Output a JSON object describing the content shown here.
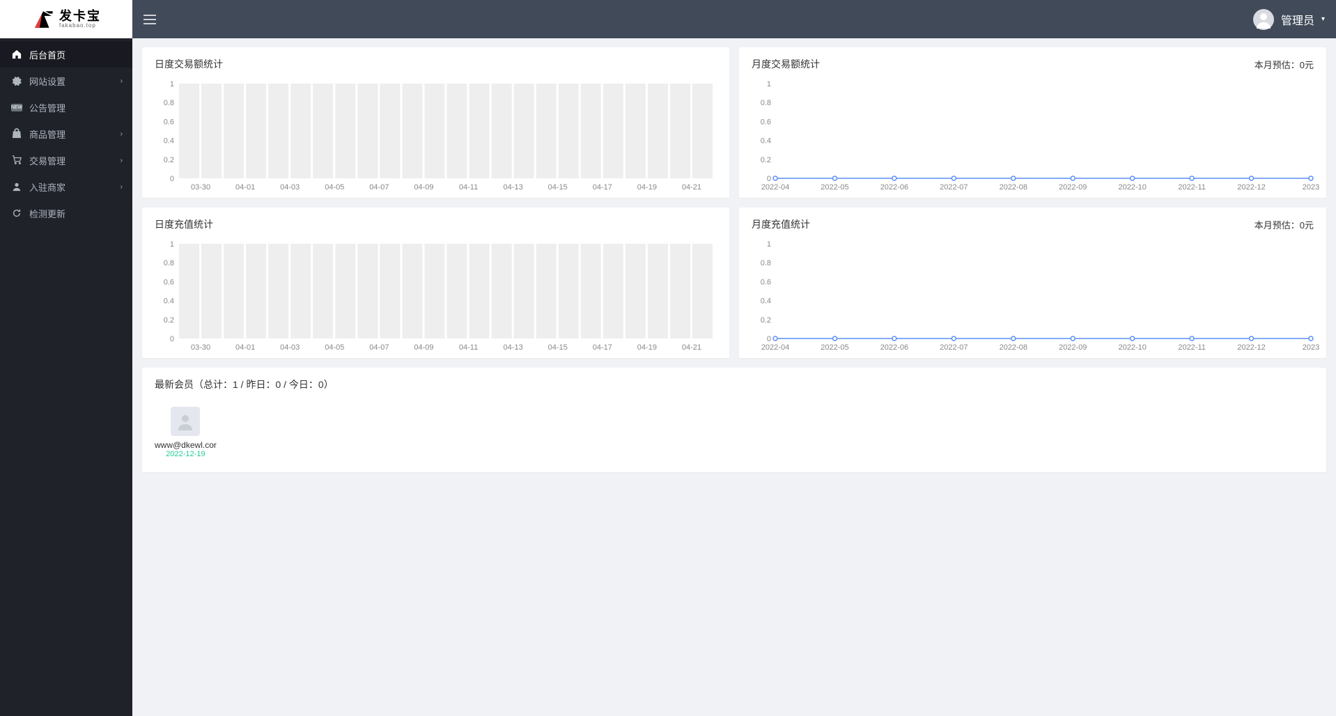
{
  "brand": {
    "cn": "发卡宝",
    "en": "fakabao.top"
  },
  "header": {
    "user_label": "管理员"
  },
  "sidebar": {
    "items": [
      {
        "label": "后台首页",
        "icon": "home",
        "active": true,
        "has_children": false
      },
      {
        "label": "网站设置",
        "icon": "gear",
        "active": false,
        "has_children": true
      },
      {
        "label": "公告管理",
        "icon": "badge",
        "active": false,
        "has_children": false
      },
      {
        "label": "商品管理",
        "icon": "bag",
        "active": false,
        "has_children": true
      },
      {
        "label": "交易管理",
        "icon": "cart",
        "active": false,
        "has_children": true
      },
      {
        "label": "入驻商家",
        "icon": "person",
        "active": false,
        "has_children": true
      },
      {
        "label": "检测更新",
        "icon": "refresh",
        "active": false,
        "has_children": false
      }
    ]
  },
  "charts": {
    "daily_trade": {
      "title": "日度交易额统计",
      "type": "bar",
      "y_ticks": [
        0,
        0.2,
        0.4,
        0.6,
        0.8,
        1
      ],
      "ylim": [
        0,
        1
      ],
      "x_labels": [
        "03-30",
        "04-01",
        "04-03",
        "04-05",
        "04-07",
        "04-09",
        "04-11",
        "04-13",
        "04-15",
        "04-17",
        "04-19",
        "04-21"
      ],
      "bar_count": 24,
      "bar_color": "#eeeeee",
      "bg_color": "#ffffff"
    },
    "monthly_trade": {
      "title": "月度交易额统计",
      "right_text": "本月预估：0元",
      "type": "line",
      "y_ticks": [
        0,
        0.2,
        0.4,
        0.6,
        0.8,
        1
      ],
      "ylim": [
        0,
        1
      ],
      "x_labels": [
        "2022-04",
        "2022-05",
        "2022-06",
        "2022-07",
        "2022-08",
        "2022-09",
        "2022-10",
        "2022-11",
        "2022-12",
        "2023"
      ],
      "values": [
        0,
        0,
        0,
        0,
        0,
        0,
        0,
        0,
        0,
        0
      ],
      "line_color": "#5b8ff9",
      "bg_color": "#ffffff"
    },
    "daily_recharge": {
      "title": "日度充值统计",
      "type": "bar",
      "y_ticks": [
        0,
        0.2,
        0.4,
        0.6,
        0.8,
        1
      ],
      "ylim": [
        0,
        1
      ],
      "x_labels": [
        "03-30",
        "04-01",
        "04-03",
        "04-05",
        "04-07",
        "04-09",
        "04-11",
        "04-13",
        "04-15",
        "04-17",
        "04-19",
        "04-21"
      ],
      "bar_count": 24,
      "bar_color": "#eeeeee",
      "bg_color": "#ffffff"
    },
    "monthly_recharge": {
      "title": "月度充值统计",
      "right_text": "本月预估：0元",
      "type": "line",
      "y_ticks": [
        0,
        0.2,
        0.4,
        0.6,
        0.8,
        1
      ],
      "ylim": [
        0,
        1
      ],
      "x_labels": [
        "2022-04",
        "2022-05",
        "2022-06",
        "2022-07",
        "2022-08",
        "2022-09",
        "2022-10",
        "2022-11",
        "2022-12",
        "2023"
      ],
      "values": [
        0,
        0,
        0,
        0,
        0,
        0,
        0,
        0,
        0,
        0
      ],
      "line_color": "#5b8ff9",
      "bg_color": "#ffffff"
    }
  },
  "members": {
    "title": "最新会员（总计：1 / 昨日：0 / 今日：0）",
    "list": [
      {
        "name": "www@dkewl.cor",
        "date": "2022-12-19"
      }
    ]
  },
  "colors": {
    "sidebar_bg": "#20222a",
    "header_bg": "#414a59",
    "page_bg": "#f0f2f5",
    "card_bg": "#ffffff",
    "accent_green": "#20c997"
  }
}
